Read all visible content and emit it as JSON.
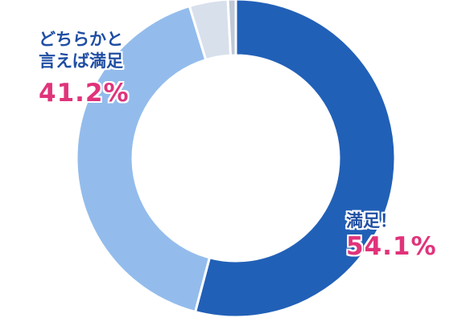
{
  "chart_data": {
    "type": "pie",
    "donut": true,
    "slices": [
      {
        "label_lines": [
          "満足！"
        ],
        "value": 54.1,
        "value_text": "54.1%",
        "color": "#2160b7"
      },
      {
        "label_lines": [
          "どちらかと",
          "言えば満足"
        ],
        "value": 41.2,
        "value_text": "41.2%",
        "color": "#93bcec"
      },
      {
        "label_lines": [],
        "value": 3.9,
        "value_text": "",
        "color": "#d8e0ec"
      },
      {
        "label_lines": [],
        "value": 0.8,
        "value_text": "",
        "color": "#bfc8d6"
      }
    ],
    "legend": "none"
  }
}
